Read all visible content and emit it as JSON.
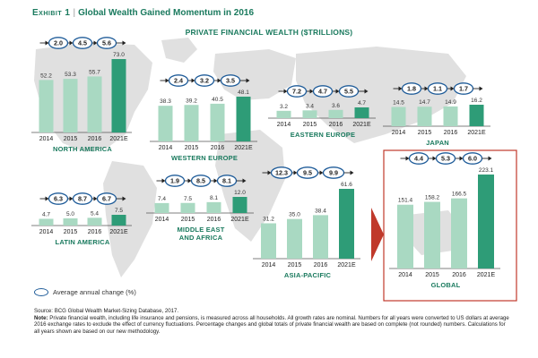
{
  "title_exhibit": "Exhibit 1",
  "title_text": "Global Wealth Gained Momentum in 2016",
  "subtitle": "PRIVATE FINANCIAL WEALTH ($TRILLIONS)",
  "legend_label": "Average annual change (%)",
  "source": "Source: BCG Global Wealth Market-Sizing Database, 2017.",
  "note_label": "Note:",
  "note_text": "Private financial wealth, including life insurance and pensions, is measured across all households. All growth rates are nominal. Numbers for all years were converted to US dollars at average 2016 exchange rates to exclude the effect of currency fluctuations. Percentage changes and global totals of private financial wealth are based on complete (not rounded) numbers. Calculations for all years shown are based on our new methodology.",
  "colors": {
    "bar_light": "#a9d9c2",
    "bar_dark": "#2e9c77",
    "title_green": "#1a7a5e",
    "ellipse_blue": "#1f5c99",
    "arrow_red": "#c0392b",
    "global_border": "#c0392b",
    "map_gray": "#e0e0e0"
  },
  "chart_data": [
    {
      "type": "bar",
      "title": "NORTH AMERICA",
      "categories": [
        "2014",
        "2015",
        "2016",
        "2021E"
      ],
      "values": [
        52.2,
        53.3,
        55.7,
        73.0
      ],
      "value_labels": [
        "52.2",
        "53.3",
        "55.7",
        "73.0"
      ],
      "changes": [
        "2.0",
        "4.5",
        "5.6"
      ]
    },
    {
      "type": "bar",
      "title": "WESTERN EUROPE",
      "categories": [
        "2014",
        "2015",
        "2016",
        "2021E"
      ],
      "values": [
        38.3,
        39.2,
        40.5,
        48.1
      ],
      "value_labels": [
        "38.3",
        "39.2",
        "40.5",
        "48.1"
      ],
      "changes": [
        "2.4",
        "3.2",
        "3.5"
      ]
    },
    {
      "type": "bar",
      "title": "EASTERN EUROPE",
      "categories": [
        "2014",
        "2015",
        "2016",
        "2021E"
      ],
      "values": [
        3.2,
        3.4,
        3.6,
        4.7
      ],
      "value_labels": [
        "3.2",
        "3.4",
        "3.6",
        "4.7"
      ],
      "changes": [
        "7.2",
        "4.7",
        "5.5"
      ]
    },
    {
      "type": "bar",
      "title": "JAPAN",
      "categories": [
        "2014",
        "2015",
        "2016",
        "2021E"
      ],
      "values": [
        14.5,
        14.7,
        14.9,
        16.2
      ],
      "value_labels": [
        "14.5",
        "14.7",
        "14.9",
        "16.2"
      ],
      "changes": [
        "1.8",
        "1.1",
        "1.7"
      ]
    },
    {
      "type": "bar",
      "title": "LATIN AMERICA",
      "categories": [
        "2014",
        "2015",
        "2016",
        "2021E"
      ],
      "values": [
        4.7,
        5.0,
        5.4,
        7.5
      ],
      "value_labels": [
        "4.7",
        "5.0",
        "5.4",
        "7.5"
      ],
      "changes": [
        "6.3",
        "8.7",
        "6.7"
      ]
    },
    {
      "type": "bar",
      "title": "MIDDLE EAST AND AFRICA",
      "title_lines": [
        "MIDDLE EAST",
        "AND AFRICA"
      ],
      "categories": [
        "2014",
        "2015",
        "2016",
        "2021E"
      ],
      "values": [
        7.4,
        7.5,
        8.1,
        12.0
      ],
      "value_labels": [
        "7.4",
        "7.5",
        "8.1",
        "12.0"
      ],
      "changes": [
        "1.9",
        "8.5",
        "8.1"
      ]
    },
    {
      "type": "bar",
      "title": "ASIA-PACIFIC",
      "categories": [
        "2014",
        "2015",
        "2016",
        "2021E"
      ],
      "values": [
        31.2,
        35.0,
        38.4,
        61.6
      ],
      "value_labels": [
        "31.2",
        "35.0",
        "38.4",
        "61.6"
      ],
      "changes": [
        "12.3",
        "9.5",
        "9.9"
      ]
    },
    {
      "type": "bar",
      "title": "GLOBAL",
      "categories": [
        "2014",
        "2015",
        "2016",
        "2021E"
      ],
      "values": [
        151.4,
        158.2,
        166.5,
        223.1
      ],
      "value_labels": [
        "151.4",
        "158.2",
        "166.5",
        "223.1"
      ],
      "changes": [
        "4.4",
        "5.3",
        "6.0"
      ]
    }
  ]
}
